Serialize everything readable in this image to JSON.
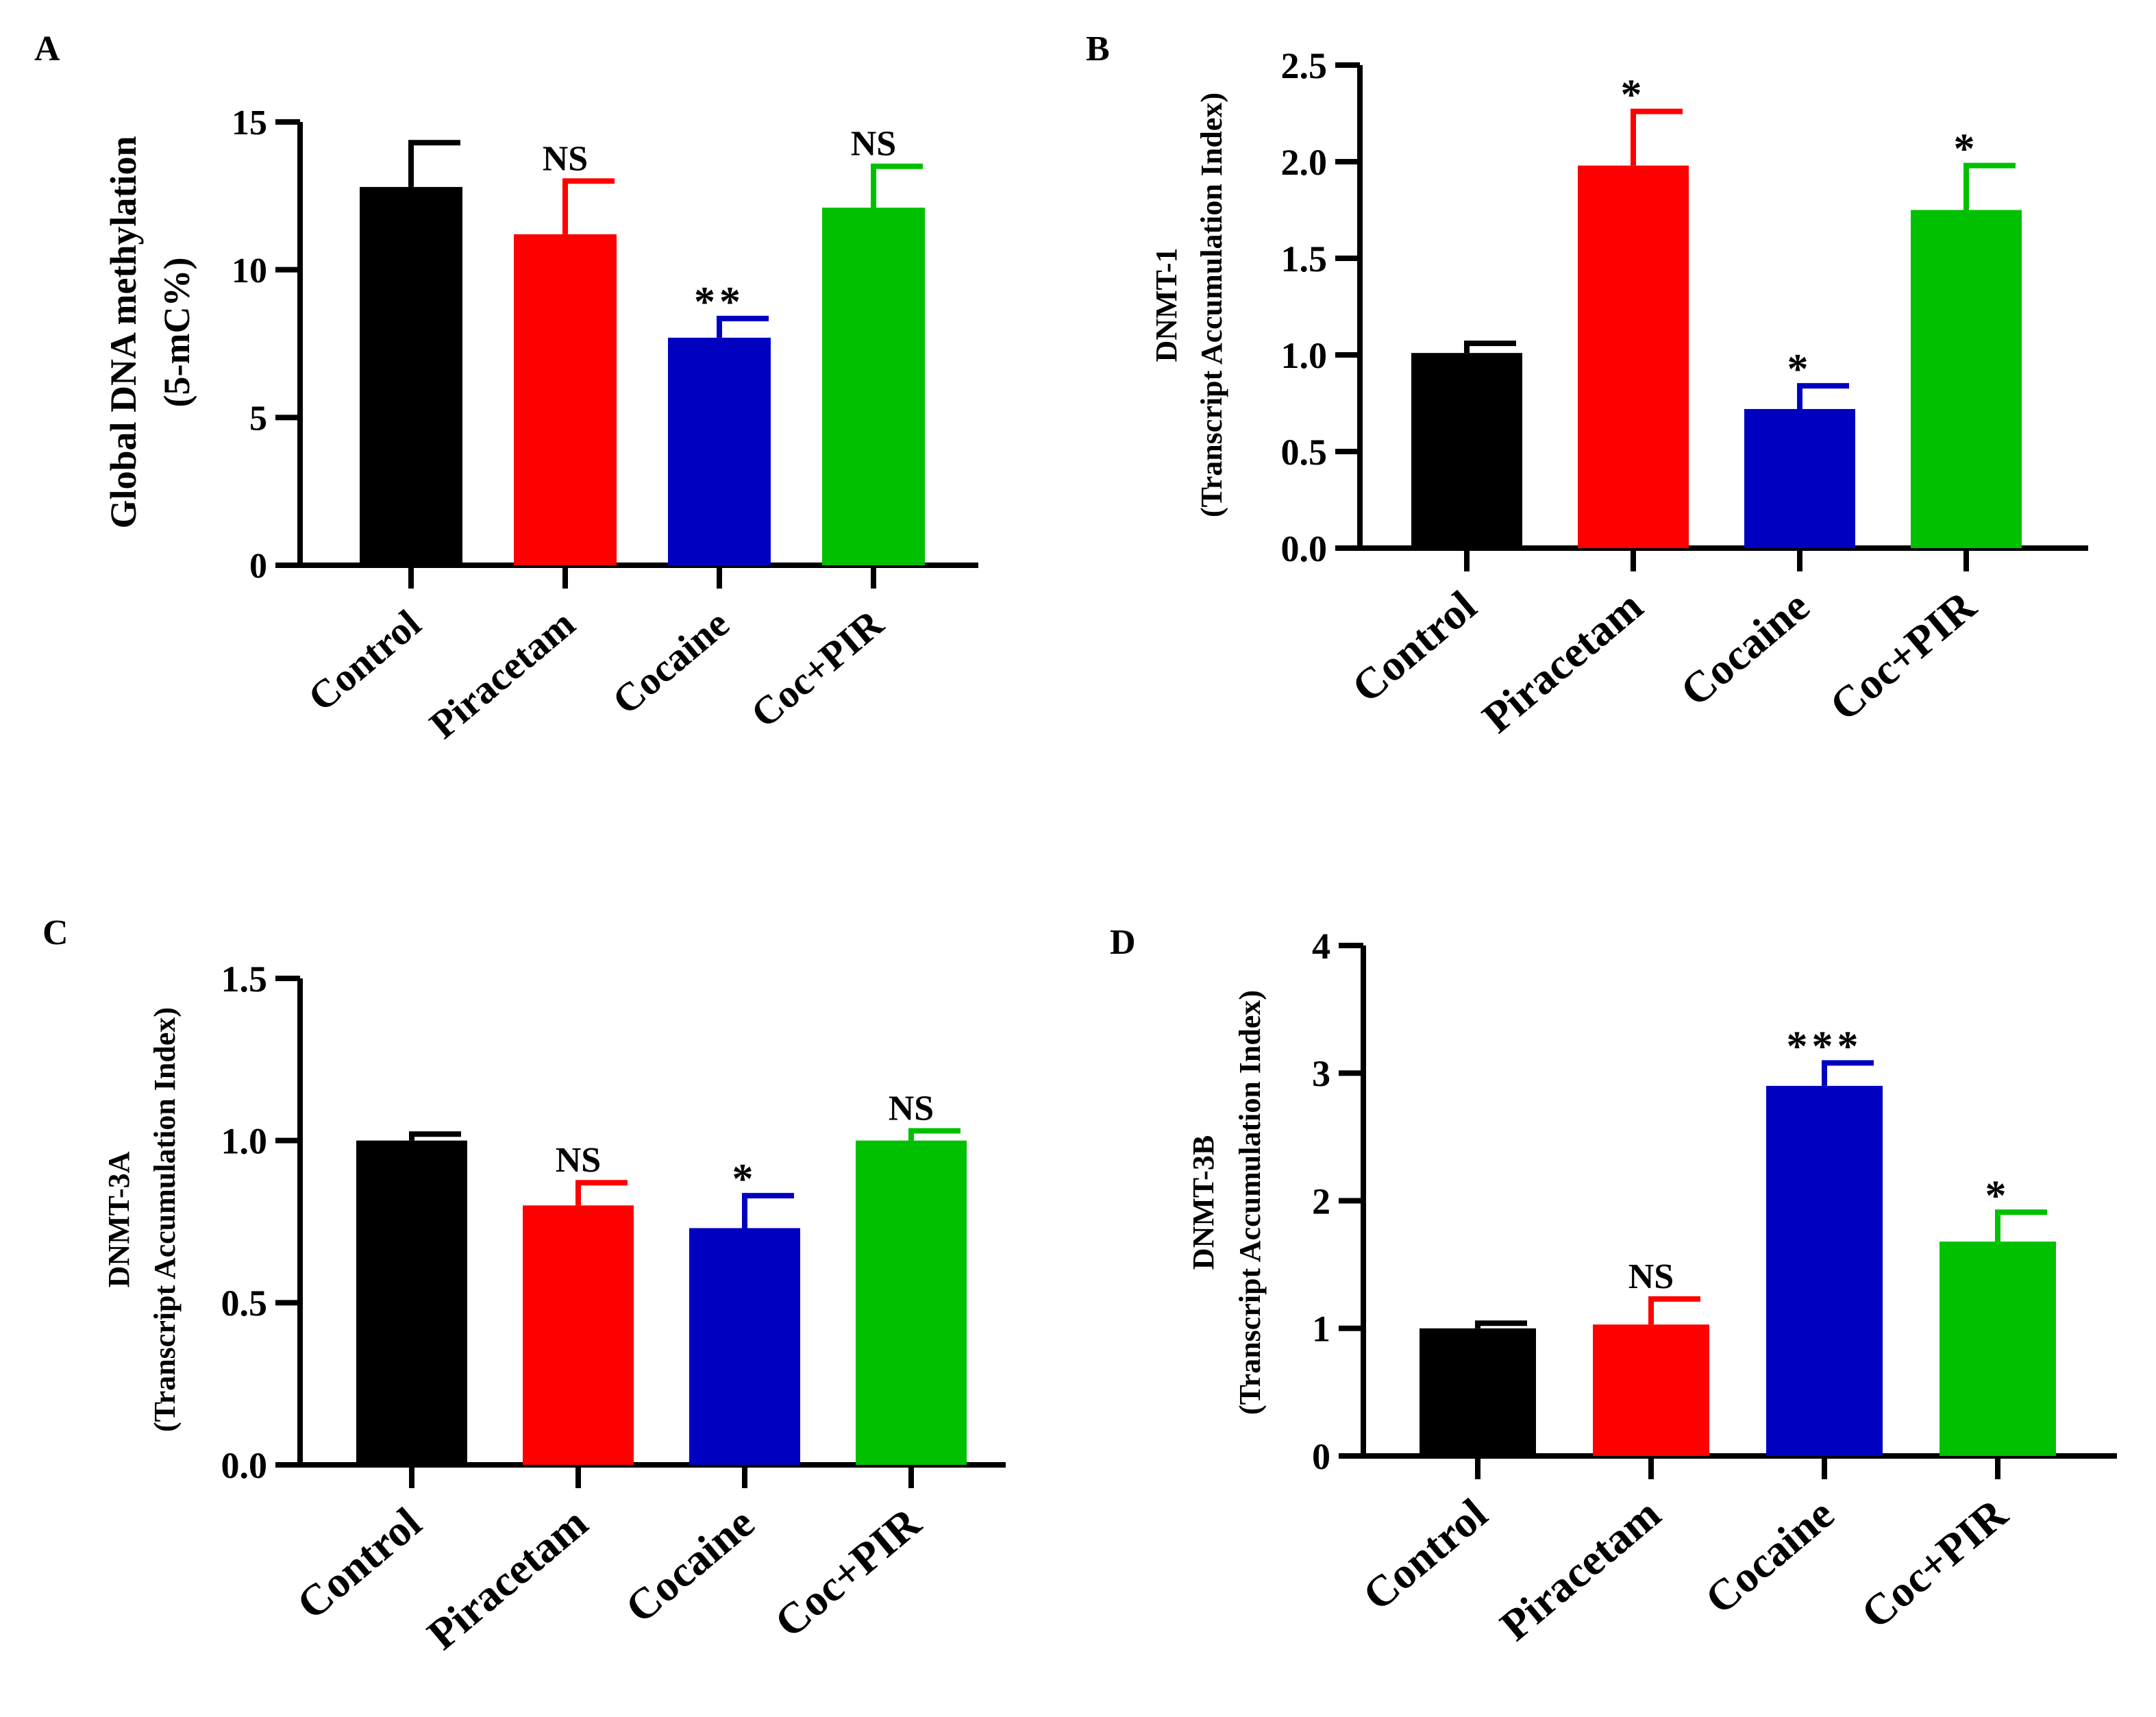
{
  "chart_data": [
    {
      "panel": "A",
      "type": "bar",
      "categories": [
        "Control",
        "Piracetam",
        "Cocaine",
        "Coc+PIR"
      ],
      "values": [
        12.8,
        11.2,
        7.7,
        12.1
      ],
      "errors": [
        1.5,
        1.8,
        0.65,
        1.4
      ],
      "annotations": [
        "",
        "NS",
        "**",
        "NS"
      ],
      "colors": [
        "#000000",
        "#ff0000",
        "#0000c0",
        "#00c000"
      ],
      "ylabel_lines": [
        "Global DNA methylation",
        "(5-mC%)"
      ],
      "xlabel": "",
      "ylim": [
        0,
        15
      ],
      "yticks": [
        0,
        5,
        10,
        15
      ],
      "ytick_labels": [
        "0",
        "5",
        "10",
        "15"
      ]
    },
    {
      "panel": "B",
      "type": "bar",
      "categories": [
        "Control",
        "Piracetam",
        "Cocaine",
        "Coc+PIR"
      ],
      "values": [
        1.01,
        1.98,
        0.72,
        1.75
      ],
      "errors": [
        0.05,
        0.28,
        0.12,
        0.23
      ],
      "annotations": [
        "",
        "*",
        "*",
        "*"
      ],
      "colors": [
        "#000000",
        "#ff0000",
        "#0000c0",
        "#00c000"
      ],
      "ylabel_lines": [
        "DNMT-1",
        "(Transcript Accumulation Index)"
      ],
      "xlabel": "",
      "ylim": [
        0,
        2.5
      ],
      "yticks": [
        0,
        0.5,
        1.0,
        1.5,
        2.0,
        2.5
      ],
      "ytick_labels": [
        "0.0",
        "0.5",
        "1.0",
        "1.5",
        "2.0",
        "2.5"
      ]
    },
    {
      "panel": "C",
      "type": "bar",
      "categories": [
        "Control",
        "Piracetam",
        "Cocaine",
        "Coc+PIR"
      ],
      "values": [
        1.0,
        0.8,
        0.73,
        1.0
      ],
      "errors": [
        0.02,
        0.07,
        0.1,
        0.03
      ],
      "annotations": [
        "",
        "NS",
        "*",
        "NS"
      ],
      "colors": [
        "#000000",
        "#ff0000",
        "#0000c0",
        "#00c000"
      ],
      "ylabel_lines": [
        "DNMT-3A",
        "(Transcript Accumulation Index)"
      ],
      "xlabel": "",
      "ylim": [
        0,
        1.5
      ],
      "yticks": [
        0,
        0.5,
        1.0,
        1.5
      ],
      "ytick_labels": [
        "0.0",
        "0.5",
        "1.0",
        "1.5"
      ]
    },
    {
      "panel": "D",
      "type": "bar",
      "categories": [
        "Control",
        "Piracetam",
        "Cocaine",
        "Coc+PIR"
      ],
      "values": [
        1.0,
        1.03,
        2.9,
        1.68
      ],
      "errors": [
        0.04,
        0.2,
        0.18,
        0.23
      ],
      "annotations": [
        "",
        "NS",
        "***",
        "*"
      ],
      "colors": [
        "#000000",
        "#ff0000",
        "#0000c0",
        "#00c000"
      ],
      "ylabel_lines": [
        "DNMT-3B",
        "(Transcript Accumulation Index)"
      ],
      "xlabel": "",
      "ylim": [
        0,
        4
      ],
      "yticks": [
        0,
        1,
        2,
        3,
        4
      ],
      "ytick_labels": [
        "0",
        "1",
        "2",
        "3",
        "4"
      ]
    }
  ]
}
